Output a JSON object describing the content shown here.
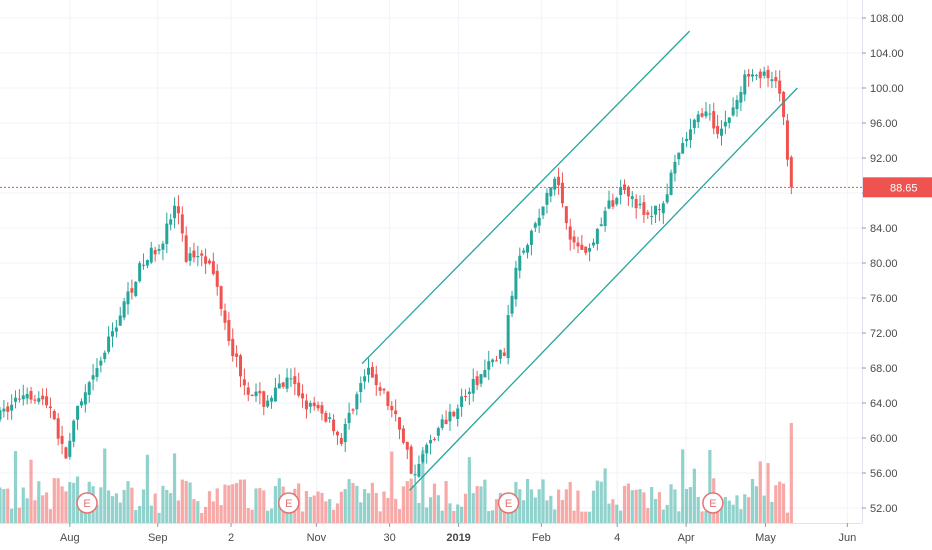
{
  "chart_data": {
    "type": "candlestick",
    "title": "",
    "ylim": [
      48,
      110
    ],
    "y_ticks": [
      "108.00",
      "104.00",
      "100.00",
      "96.00",
      "92.00",
      "88.00",
      "84.00",
      "80.00",
      "76.00",
      "72.00",
      "68.00",
      "64.00",
      "60.00",
      "56.00",
      "52.00"
    ],
    "x_ticks": [
      "Aug",
      "Sep",
      "2",
      "Nov",
      "30",
      "2019",
      "Feb",
      "4",
      "Apr",
      "May",
      "Jun"
    ],
    "x_tick_bold": "2019",
    "current_price": {
      "label": "88.65",
      "value": 88.65
    },
    "earnings_marker_label": "E",
    "earnings_positions": [
      0.101,
      0.335,
      0.59,
      0.827
    ],
    "price_path": [
      [
        0.0,
        62.5
      ],
      [
        0.03,
        65.5
      ],
      [
        0.06,
        63.5
      ],
      [
        0.075,
        57.5
      ],
      [
        0.09,
        63.0
      ],
      [
        0.11,
        67.0
      ],
      [
        0.13,
        72.0
      ],
      [
        0.16,
        79.0
      ],
      [
        0.19,
        83.0
      ],
      [
        0.205,
        87.0
      ],
      [
        0.215,
        80.5
      ],
      [
        0.235,
        81.5
      ],
      [
        0.25,
        78.0
      ],
      [
        0.27,
        70.0
      ],
      [
        0.285,
        66.0
      ],
      [
        0.305,
        64.0
      ],
      [
        0.335,
        66.5
      ],
      [
        0.36,
        63.5
      ],
      [
        0.385,
        62.0
      ],
      [
        0.395,
        59.5
      ],
      [
        0.41,
        64.0
      ],
      [
        0.425,
        67.5
      ],
      [
        0.44,
        66.0
      ],
      [
        0.465,
        61.0
      ],
      [
        0.48,
        55.5
      ],
      [
        0.5,
        60.0
      ],
      [
        0.52,
        62.5
      ],
      [
        0.545,
        65.5
      ],
      [
        0.565,
        68.0
      ],
      [
        0.585,
        70.0
      ],
      [
        0.6,
        81.0
      ],
      [
        0.62,
        84.0
      ],
      [
        0.645,
        90.0
      ],
      [
        0.665,
        82.0
      ],
      [
        0.685,
        81.5
      ],
      [
        0.7,
        85.5
      ],
      [
        0.725,
        89.0
      ],
      [
        0.75,
        85.0
      ],
      [
        0.77,
        87.0
      ],
      [
        0.79,
        93.0
      ],
      [
        0.815,
        97.5
      ],
      [
        0.835,
        95.0
      ],
      [
        0.855,
        98.5
      ],
      [
        0.87,
        102.5
      ],
      [
        0.89,
        101.0
      ],
      [
        0.905,
        99.5
      ],
      [
        0.918,
        88.65
      ]
    ],
    "channel_lines": [
      {
        "name": "upper",
        "x1": 0.42,
        "y1": 68.5,
        "x2": 0.8,
        "y2": 106.5
      },
      {
        "name": "lower",
        "x1": 0.475,
        "y1": 54.0,
        "x2": 0.925,
        "y2": 100.0
      }
    ],
    "colors": {
      "up": "#26a69a",
      "down": "#ef5350",
      "channel": "#26a69a",
      "price_line": "#ef5350",
      "grid": "#f0f3fa",
      "earnings": "#e57373"
    }
  }
}
